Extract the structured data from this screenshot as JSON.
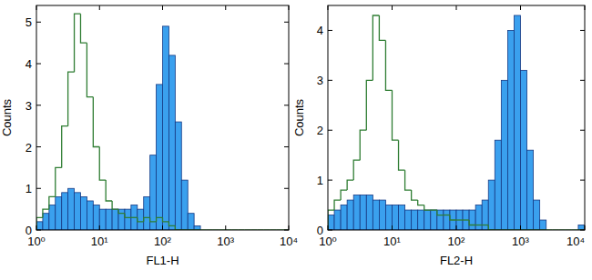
{
  "chart_data": [
    {
      "type": "histogram",
      "log": "x",
      "x_label": "FL1-H",
      "y_label": "Counts",
      "bins": [
        1,
        1.259,
        1.585,
        1.995,
        2.512,
        3.162,
        3.981,
        5.012,
        6.31,
        7.943,
        10,
        12.59,
        15.85,
        19.95,
        25.12,
        31.62,
        39.81,
        50.12,
        63.1,
        79.43,
        100,
        125.9,
        158.5,
        199.5,
        251.2,
        316.2,
        398.1,
        501.2,
        631,
        794.3,
        1000,
        1259,
        1585,
        1995,
        2512,
        3162,
        3981,
        5012,
        6310,
        7943,
        10000
      ],
      "series": [
        {
          "type": "histogram",
          "color": "#3aa0ee",
          "values": [
            0.2,
            0.4,
            0.6,
            0.8,
            0.9,
            1.0,
            0.9,
            0.8,
            0.7,
            0.6,
            0.5,
            0.5,
            0.5,
            0.5,
            0.5,
            0.6,
            0.5,
            0.8,
            1.8,
            3.5,
            4.9,
            4.2,
            2.6,
            1.2,
            0.4,
            0.1,
            0,
            0,
            0,
            0,
            0,
            0,
            0,
            0,
            0,
            0,
            0,
            0,
            0,
            0
          ]
        },
        {
          "type": "step",
          "color": "#2f7d33",
          "values": [
            0.3,
            0.5,
            0.8,
            1.5,
            2.5,
            3.8,
            5.2,
            4.5,
            3.2,
            2.0,
            1.2,
            0.7,
            0.5,
            0.4,
            0.3,
            0.3,
            0.2,
            0.3,
            0.2,
            0.3,
            0.2,
            0.1,
            0,
            0,
            0,
            0,
            0,
            0,
            0,
            0,
            0,
            0,
            0,
            0,
            0,
            0,
            0,
            0,
            0,
            0
          ]
        }
      ],
      "xlim": [
        1,
        10000
      ],
      "xticks": [
        {
          "value": 1,
          "label": "10⁰"
        },
        {
          "value": 10,
          "label": "10¹"
        },
        {
          "value": 100,
          "label": "10²"
        },
        {
          "value": 1000,
          "label": "10³"
        },
        {
          "value": 10000,
          "label": "10⁴"
        }
      ],
      "ylim": [
        0,
        5.4
      ],
      "yticks": [
        0,
        1,
        2,
        3,
        4,
        5
      ]
    },
    {
      "type": "histogram",
      "log": "x",
      "x_label": "FL2-H",
      "y_label": "Counts",
      "bins": [
        1,
        1.259,
        1.585,
        1.995,
        2.512,
        3.162,
        3.981,
        5.012,
        6.31,
        7.943,
        10,
        12.59,
        15.85,
        19.95,
        25.12,
        31.62,
        39.81,
        50.12,
        63.1,
        79.43,
        100,
        125.9,
        158.5,
        199.5,
        251.2,
        316.2,
        398.1,
        501.2,
        631,
        794.3,
        1000,
        1259,
        1585,
        1995,
        2512,
        3162,
        3981,
        5012,
        6310,
        7943,
        10000
      ],
      "series": [
        {
          "type": "histogram",
          "color": "#3aa0ee",
          "values": [
            0.3,
            0.4,
            0.5,
            0.6,
            0.7,
            0.7,
            0.7,
            0.6,
            0.6,
            0.5,
            0.5,
            0.5,
            0.4,
            0.4,
            0.4,
            0.4,
            0.4,
            0.4,
            0.4,
            0.4,
            0.4,
            0.4,
            0.4,
            0.5,
            0.6,
            1.0,
            1.8,
            3.0,
            4.0,
            4.3,
            3.2,
            1.6,
            0.6,
            0.2,
            0,
            0,
            0,
            0,
            0,
            0.1
          ]
        },
        {
          "type": "step",
          "color": "#2f7d33",
          "values": [
            0.4,
            0.6,
            0.8,
            1.0,
            1.4,
            2.0,
            3.0,
            4.3,
            3.8,
            2.8,
            1.8,
            1.2,
            0.8,
            0.6,
            0.5,
            0.4,
            0.4,
            0.3,
            0.3,
            0.2,
            0.2,
            0.2,
            0.1,
            0.1,
            0.1,
            0,
            0,
            0,
            0,
            0,
            0,
            0,
            0,
            0,
            0,
            0,
            0,
            0,
            0,
            0
          ]
        }
      ],
      "xlim": [
        1,
        10000
      ],
      "xticks": [
        {
          "value": 1,
          "label": "10⁰"
        },
        {
          "value": 10,
          "label": "10¹"
        },
        {
          "value": 100,
          "label": "10²"
        },
        {
          "value": 1000,
          "label": "10³"
        },
        {
          "value": 10000,
          "label": "10⁴"
        }
      ],
      "ylim": [
        0,
        4.5
      ],
      "yticks": [
        0,
        1,
        2,
        3,
        4
      ]
    }
  ]
}
